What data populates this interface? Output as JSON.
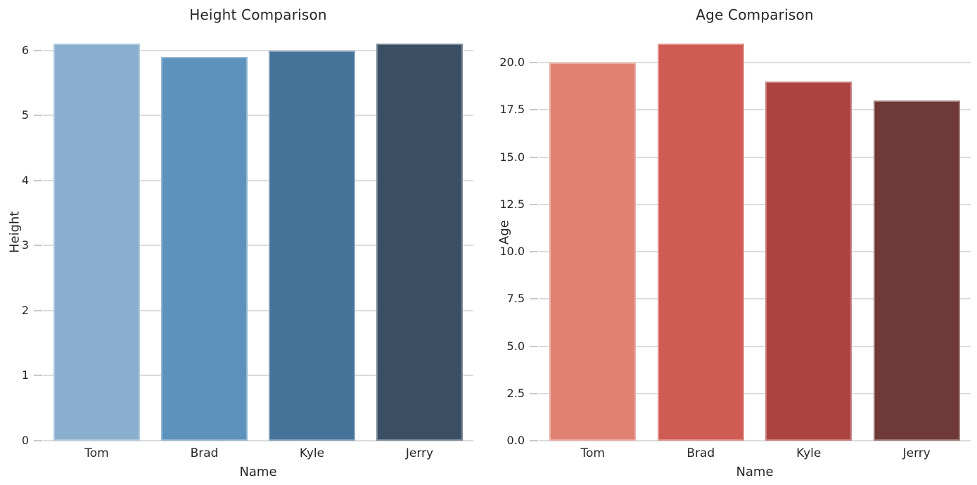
{
  "figure": {
    "background_color": "#ffffff",
    "grid_color": "#dcdcdc",
    "tick_color": "#c9c9c9",
    "text_color": "#262626"
  },
  "chart_data": [
    {
      "type": "bar",
      "title": "Height Comparison",
      "xlabel": "Name",
      "ylabel": "Height",
      "categories": [
        "Tom",
        "Brad",
        "Kyle",
        "Jerry"
      ],
      "values": [
        6.1,
        5.9,
        6.0,
        6.1
      ],
      "bar_colors": [
        "#8aaecd",
        "#5c92bb",
        "#45739a",
        "#3a4f63"
      ],
      "yticks": [
        0,
        1,
        2,
        3,
        4,
        5,
        6
      ],
      "ytick_labels": [
        "0",
        "1",
        "2",
        "3",
        "4",
        "5",
        "6"
      ],
      "ylim": [
        0,
        6.405
      ],
      "grid": true,
      "legend": null
    },
    {
      "type": "bar",
      "title": "Age Comparison",
      "xlabel": "Name",
      "ylabel": "Age",
      "categories": [
        "Tom",
        "Brad",
        "Kyle",
        "Jerry"
      ],
      "values": [
        20,
        21,
        19,
        18
      ],
      "bar_colors": [
        "#e08172",
        "#d05b52",
        "#ad4340",
        "#6e3937"
      ],
      "yticks": [
        0,
        2.5,
        5,
        7.5,
        10,
        12.5,
        15,
        17.5,
        20
      ],
      "ytick_labels": [
        "0.0",
        "2.5",
        "5.0",
        "7.5",
        "10.0",
        "12.5",
        "15.0",
        "17.5",
        "20.0"
      ],
      "ylim": [
        0,
        22.05
      ],
      "grid": true,
      "legend": null
    }
  ]
}
